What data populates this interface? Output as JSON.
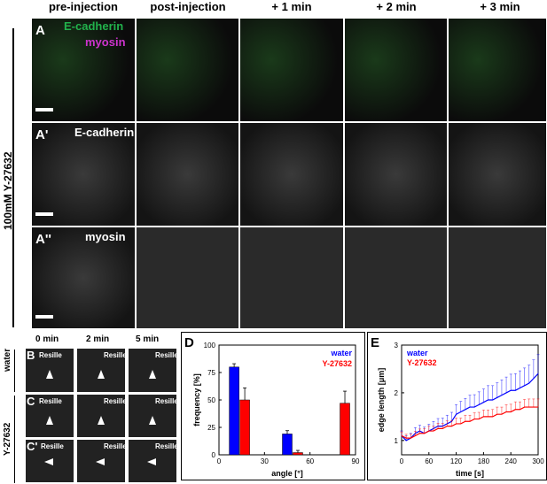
{
  "column_headers": [
    "pre-injection",
    "post-injection",
    "+ 1 min",
    "+ 2 min",
    "+ 3 min"
  ],
  "row_label_vertical": "100mM Y-27632",
  "panels": {
    "A": {
      "letter": "A",
      "channel1": "E-cadherin",
      "channel2": "myosin",
      "channel1_color": "#22b14c",
      "channel2_color": "#cc33cc"
    },
    "A_prime": {
      "letter": "A'",
      "channel": "E-cadherin"
    },
    "A_dprime": {
      "letter": "A''",
      "channel": "myosin"
    }
  },
  "small_panels": {
    "time_headers": [
      "0 min",
      "2 min",
      "5 min"
    ],
    "rows": [
      {
        "letter": "B",
        "label": "Resille"
      },
      {
        "letter": "C",
        "label": "Resille"
      },
      {
        "letter": "C'",
        "label": "Resille"
      }
    ],
    "group_labels": [
      "water",
      "Y-27632"
    ]
  },
  "chart_data": [
    {
      "panel": "D",
      "type": "bar",
      "xlabel": "angle [°]",
      "ylabel": "frequency [%]",
      "xlim": [
        0,
        90
      ],
      "ylim": [
        0,
        100
      ],
      "xticks": [
        0,
        30,
        60,
        90
      ],
      "yticks": [
        0,
        25,
        50,
        75,
        100
      ],
      "legend_placement": "top-right",
      "series": [
        {
          "name": "water",
          "color": "#0000ff",
          "x": [
            10,
            45
          ],
          "values": [
            80,
            19
          ],
          "errors": [
            3,
            3
          ]
        },
        {
          "name": "Y-27632",
          "color": "#ff0000",
          "x": [
            17,
            52,
            83
          ],
          "values": [
            50,
            2,
            47
          ],
          "errors": [
            11,
            2,
            11
          ]
        }
      ]
    },
    {
      "panel": "E",
      "type": "line",
      "xlabel": "time [s]",
      "ylabel": "edge length [μm]",
      "xlim": [
        0,
        300
      ],
      "ylim": [
        0.7,
        3
      ],
      "xticks": [
        0,
        60,
        120,
        180,
        240,
        300
      ],
      "yticks": [
        1,
        2,
        3
      ],
      "legend_placement": "top-left",
      "series": [
        {
          "name": "water",
          "color": "#0000ff",
          "x": [
            0,
            10,
            20,
            30,
            40,
            50,
            60,
            70,
            80,
            90,
            100,
            110,
            120,
            130,
            140,
            150,
            160,
            170,
            180,
            190,
            200,
            210,
            220,
            230,
            240,
            250,
            260,
            270,
            280,
            290,
            300
          ],
          "values": [
            1.1,
            1.0,
            1.05,
            1.15,
            1.2,
            1.15,
            1.2,
            1.25,
            1.3,
            1.3,
            1.35,
            1.4,
            1.55,
            1.6,
            1.65,
            1.7,
            1.7,
            1.75,
            1.8,
            1.85,
            1.85,
            1.9,
            1.95,
            2.0,
            2.05,
            2.05,
            2.1,
            2.15,
            2.2,
            2.3,
            2.4
          ],
          "errors": [
            0.1,
            0.1,
            0.1,
            0.12,
            0.12,
            0.13,
            0.14,
            0.15,
            0.16,
            0.17,
            0.18,
            0.19,
            0.2,
            0.22,
            0.23,
            0.25,
            0.26,
            0.27,
            0.28,
            0.3,
            0.3,
            0.31,
            0.32,
            0.33,
            0.34,
            0.35,
            0.36,
            0.37,
            0.38,
            0.39,
            0.4
          ]
        },
        {
          "name": "Y-27632",
          "color": "#ff0000",
          "x": [
            0,
            10,
            20,
            30,
            40,
            50,
            60,
            70,
            80,
            90,
            100,
            110,
            120,
            130,
            140,
            150,
            160,
            170,
            180,
            190,
            200,
            210,
            220,
            230,
            240,
            250,
            260,
            270,
            280,
            290,
            300
          ],
          "values": [
            1.1,
            1.05,
            1.05,
            1.1,
            1.15,
            1.15,
            1.2,
            1.2,
            1.25,
            1.25,
            1.3,
            1.3,
            1.35,
            1.35,
            1.4,
            1.4,
            1.45,
            1.45,
            1.5,
            1.5,
            1.5,
            1.55,
            1.55,
            1.6,
            1.6,
            1.65,
            1.65,
            1.7,
            1.7,
            1.7,
            1.7
          ],
          "errors": [
            0.08,
            0.08,
            0.08,
            0.09,
            0.09,
            0.1,
            0.1,
            0.1,
            0.11,
            0.11,
            0.11,
            0.12,
            0.12,
            0.12,
            0.13,
            0.13,
            0.13,
            0.14,
            0.14,
            0.14,
            0.15,
            0.15,
            0.15,
            0.15,
            0.16,
            0.16,
            0.16,
            0.16,
            0.17,
            0.17,
            0.17
          ]
        }
      ]
    }
  ]
}
